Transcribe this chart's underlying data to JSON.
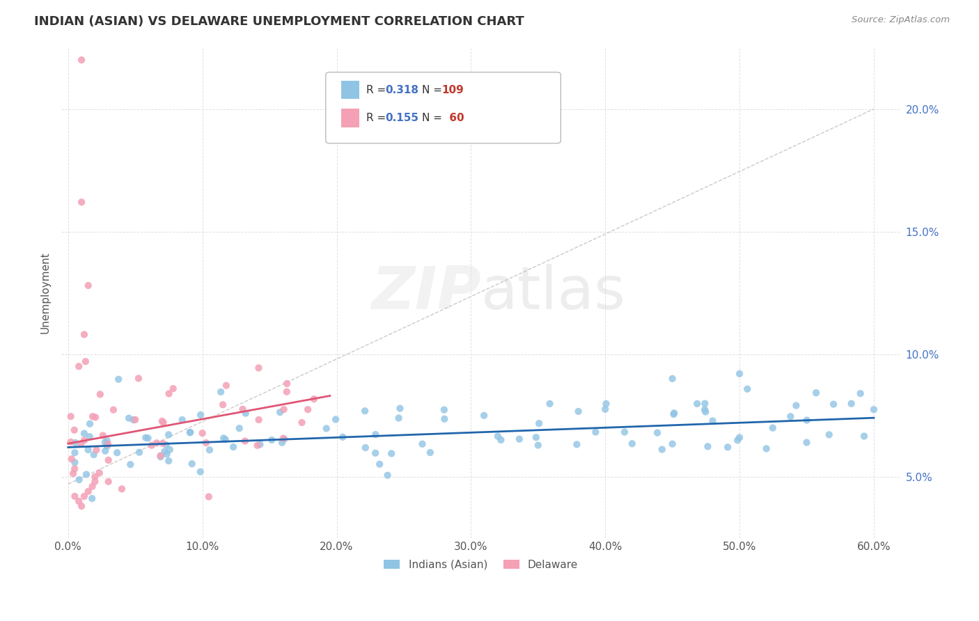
{
  "title": "INDIAN (ASIAN) VS DELAWARE UNEMPLOYMENT CORRELATION CHART",
  "source_text": "Source: ZipAtlas.com",
  "ylabel": "Unemployment",
  "xlim": [
    -0.005,
    0.62
  ],
  "ylim": [
    0.025,
    0.225
  ],
  "xticks": [
    0.0,
    0.1,
    0.2,
    0.3,
    0.4,
    0.5,
    0.6
  ],
  "xtick_labels": [
    "0.0%",
    "10.0%",
    "20.0%",
    "30.0%",
    "40.0%",
    "50.0%",
    "60.0%"
  ],
  "yticks": [
    0.05,
    0.1,
    0.15,
    0.2
  ],
  "ytick_labels": [
    "5.0%",
    "10.0%",
    "15.0%",
    "20.0%"
  ],
  "blue_color": "#90c4e4",
  "pink_color": "#f4a0b5",
  "blue_line_color": "#2166ac",
  "pink_line_color": "#e05575",
  "dashed_line_color": "#c0c0c0",
  "watermark_text": "ZIPatlas",
  "background_color": "#ffffff",
  "grid_color": "#e0e0e0",
  "blue_line_x": [
    0.0,
    0.6
  ],
  "blue_line_y": [
    0.062,
    0.074
  ],
  "pink_line_x": [
    0.0,
    0.195
  ],
  "pink_line_y": [
    0.0635,
    0.083
  ],
  "dashed_line_x": [
    0.0,
    0.6
  ],
  "dashed_line_y": [
    0.047,
    0.2
  ]
}
